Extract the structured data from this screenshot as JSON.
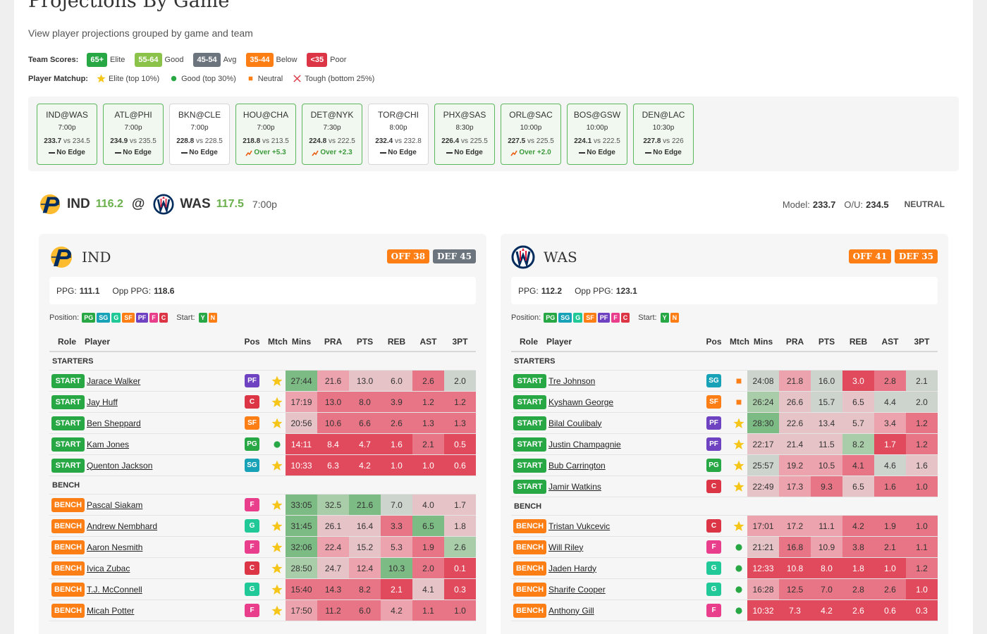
{
  "header": {
    "title": "Projections By Game",
    "subtitle": "View player projections grouped by game and team"
  },
  "legend": {
    "team_scores_label": "Team Scores:",
    "team_scores": [
      {
        "label": "65+",
        "text": "Elite",
        "color": "#28a745"
      },
      {
        "label": "55-64",
        "text": "Good",
        "color": "#8bc34a"
      },
      {
        "label": "45-54",
        "text": "Avg",
        "color": "#6c757d"
      },
      {
        "label": "35-44",
        "text": "Below",
        "color": "#fd7e14"
      },
      {
        "label": "<35",
        "text": "Poor",
        "color": "#dc3545"
      }
    ],
    "player_matchup_label": "Player Matchup:",
    "player_matchup": [
      {
        "icon": "elite",
        "text": "Elite (top 10%)"
      },
      {
        "icon": "good",
        "text": "Good (top 30%)"
      },
      {
        "icon": "neutral",
        "text": "Neutral"
      },
      {
        "icon": "tough",
        "text": "Tough (bottom 25%)"
      }
    ]
  },
  "games": [
    {
      "matchup": "IND@WAS",
      "time": "7:00p",
      "model": "233.7",
      "vs": "vs 234.5",
      "edge": "No Edge",
      "border": "#5cb85c"
    },
    {
      "matchup": "ATL@PHI",
      "time": "7:00p",
      "model": "234.9",
      "vs": "vs 235.5",
      "edge": "No Edge",
      "border": "#5cb85c"
    },
    {
      "matchup": "BKN@CLE",
      "time": "7:00p",
      "model": "228.8",
      "vs": "vs 228.5",
      "edge": "No Edge",
      "border": "#d6d6d6"
    },
    {
      "matchup": "HOU@CHA",
      "time": "7:00p",
      "model": "218.8",
      "vs": "vs 213.5",
      "edge": "Over +5.3",
      "border": "#5cb85c"
    },
    {
      "matchup": "DET@NYK",
      "time": "7:30p",
      "model": "224.8",
      "vs": "vs 222.5",
      "edge": "Over +2.3",
      "border": "#5cb85c"
    },
    {
      "matchup": "TOR@CHI",
      "time": "8:00p",
      "model": "232.4",
      "vs": "vs 232.8",
      "edge": "No Edge",
      "border": "#d6d6d6"
    },
    {
      "matchup": "PHX@SAS",
      "time": "8:30p",
      "model": "226.4",
      "vs": "vs 225.5",
      "edge": "No Edge",
      "border": "#5cb85c"
    },
    {
      "matchup": "ORL@SAC",
      "time": "10:00p",
      "model": "227.5",
      "vs": "vs 225.5",
      "edge": "Over +2.0",
      "border": "#5cb85c"
    },
    {
      "matchup": "BOS@GSW",
      "time": "10:00p",
      "model": "224.1",
      "vs": "vs 222.5",
      "edge": "No Edge",
      "border": "#5cb85c"
    },
    {
      "matchup": "DEN@LAC",
      "time": "10:30p",
      "model": "227.8",
      "vs": "vs 226",
      "edge": "No Edge",
      "border": "#5cb85c"
    }
  ],
  "game_header": {
    "away": "IND",
    "away_score": "116.2",
    "at": "@",
    "home": "WAS",
    "home_score": "117.5",
    "time": "7:00p",
    "model_label": "Model:",
    "model": "233.7",
    "ou_label": "O/U:",
    "ou": "234.5",
    "signal": "NEUTRAL"
  },
  "teams": [
    {
      "name": "IND",
      "off": "OFF 38",
      "off_color": "#fd7e14",
      "def": "DEF 45",
      "def_color": "#6c757d",
      "ppg_label": "PPG:",
      "ppg": "111.1",
      "opp_label": "Opp PPG:",
      "opp": "118.6",
      "position_label": "Position:",
      "positions": [
        {
          "label": "PG",
          "color": "#28a745"
        },
        {
          "label": "SG",
          "color": "#17a2b8"
        },
        {
          "label": "G",
          "color": "#20c997"
        },
        {
          "label": "SF",
          "color": "#fd7e14"
        },
        {
          "label": "PF",
          "color": "#6f42c1"
        },
        {
          "label": "F",
          "color": "#e83e8c"
        },
        {
          "label": "C",
          "color": "#dc3545"
        }
      ],
      "start_label": "Start:",
      "start": [
        {
          "label": "Y",
          "color": "#28a745"
        },
        {
          "label": "N",
          "color": "#fd7e14"
        }
      ],
      "columns": [
        "Role",
        "Player",
        "Pos",
        "Mtch",
        "Mins",
        "PRA",
        "PTS",
        "REB",
        "AST",
        "3PT"
      ],
      "sections": [
        {
          "label": "STARTERS",
          "rows": [
            {
              "role": "START",
              "player": "Jarace Walker",
              "pos": "PF",
              "match": "elite",
              "stats": [
                "27:44",
                "21.6",
                "13.0",
                "6.0",
                "2.6",
                "2.0"
              ],
              "colors": [
                "#7dbb84",
                "#eda3ad",
                "#e6c3c7",
                "#e6c3c7",
                "#e87585",
                "#cdd3cd"
              ]
            },
            {
              "role": "START",
              "player": "Jay Huff",
              "pos": "C",
              "match": "elite",
              "stats": [
                "17:19",
                "13.0",
                "8.0",
                "3.9",
                "1.2",
                "1.2"
              ],
              "colors": [
                "#eda3ad",
                "#e87585",
                "#e87585",
                "#e87585",
                "#e87585",
                "#e87585"
              ]
            },
            {
              "role": "START",
              "player": "Ben Sheppard",
              "pos": "SF",
              "match": "elite",
              "stats": [
                "20:56",
                "10.6",
                "6.6",
                "2.6",
                "1.3",
                "1.3"
              ],
              "colors": [
                "#e6c3c7",
                "#e87585",
                "#e87585",
                "#e87585",
                "#e87585",
                "#e87585"
              ]
            },
            {
              "role": "START",
              "player": "Kam Jones",
              "pos": "PG",
              "match": "good",
              "stats": [
                "14:11",
                "8.4",
                "4.7",
                "1.6",
                "2.1",
                "0.5"
              ],
              "colors": [
                "#e04a5c",
                "#e04a5c",
                "#e04a5c",
                "#e04a5c",
                "#e87585",
                "#e04a5c"
              ]
            },
            {
              "role": "START",
              "player": "Quenton Jackson",
              "pos": "SG",
              "match": "elite",
              "stats": [
                "10:33",
                "6.3",
                "4.2",
                "1.0",
                "1.0",
                "0.6"
              ],
              "colors": [
                "#e04a5c",
                "#e04a5c",
                "#e04a5c",
                "#e04a5c",
                "#e04a5c",
                "#e04a5c"
              ]
            }
          ]
        },
        {
          "label": "BENCH",
          "rows": [
            {
              "role": "BENCH",
              "player": "Pascal Siakam",
              "pos": "F",
              "match": "elite",
              "stats": [
                "33:05",
                "32.5",
                "21.6",
                "7.0",
                "4.0",
                "1.7"
              ],
              "colors": [
                "#7dbb84",
                "#a9cda9",
                "#7dbb84",
                "#cdd3cd",
                "#e6c3c7",
                "#e6c3c7"
              ]
            },
            {
              "role": "BENCH",
              "player": "Andrew Nembhard",
              "pos": "G",
              "match": "elite",
              "stats": [
                "31:45",
                "26.1",
                "16.4",
                "3.3",
                "6.5",
                "1.8"
              ],
              "colors": [
                "#7dbb84",
                "#e6c3c7",
                "#e6c3c7",
                "#e87585",
                "#7dbb84",
                "#e6c3c7"
              ]
            },
            {
              "role": "BENCH",
              "player": "Aaron Nesmith",
              "pos": "F",
              "match": "elite",
              "stats": [
                "32:06",
                "22.4",
                "15.2",
                "5.3",
                "1.9",
                "2.6"
              ],
              "colors": [
                "#7dbb84",
                "#eda3ad",
                "#e6c3c7",
                "#eda3ad",
                "#e87585",
                "#a9cda9"
              ]
            },
            {
              "role": "BENCH",
              "player": "Ivica Zubac",
              "pos": "C",
              "match": "elite",
              "stats": [
                "28:50",
                "24.7",
                "12.4",
                "10.3",
                "2.0",
                "0.1"
              ],
              "colors": [
                "#a9cda9",
                "#e6c3c7",
                "#eda3ad",
                "#7dbb84",
                "#e87585",
                "#e04a5c"
              ]
            },
            {
              "role": "BENCH",
              "player": "T.J. McConnell",
              "pos": "G",
              "match": "elite",
              "stats": [
                "15:40",
                "14.3",
                "8.2",
                "2.1",
                "4.1",
                "0.3"
              ],
              "colors": [
                "#e87585",
                "#e87585",
                "#e87585",
                "#e04a5c",
                "#e6c3c7",
                "#e04a5c"
              ]
            },
            {
              "role": "BENCH",
              "player": "Micah Potter",
              "pos": "F",
              "match": "elite",
              "stats": [
                "17:50",
                "11.2",
                "6.0",
                "4.2",
                "1.1",
                "1.0"
              ],
              "colors": [
                "#eda3ad",
                "#e87585",
                "#e87585",
                "#eda3ad",
                "#e87585",
                "#e87585"
              ]
            }
          ]
        }
      ]
    },
    {
      "name": "WAS",
      "off": "OFF 41",
      "off_color": "#fd7e14",
      "def": "DEF 35",
      "def_color": "#fd7e14",
      "ppg_label": "PPG:",
      "ppg": "112.2",
      "opp_label": "Opp PPG:",
      "opp": "123.1",
      "position_label": "Position:",
      "positions": [
        {
          "label": "PG",
          "color": "#28a745"
        },
        {
          "label": "SG",
          "color": "#17a2b8"
        },
        {
          "label": "G",
          "color": "#20c997"
        },
        {
          "label": "SF",
          "color": "#fd7e14"
        },
        {
          "label": "PF",
          "color": "#6f42c1"
        },
        {
          "label": "F",
          "color": "#e83e8c"
        },
        {
          "label": "C",
          "color": "#dc3545"
        }
      ],
      "start_label": "Start:",
      "start": [
        {
          "label": "Y",
          "color": "#28a745"
        },
        {
          "label": "N",
          "color": "#fd7e14"
        }
      ],
      "columns": [
        "Role",
        "Player",
        "Pos",
        "Mtch",
        "Mins",
        "PRA",
        "PTS",
        "REB",
        "AST",
        "3PT"
      ],
      "sections": [
        {
          "label": "STARTERS",
          "rows": [
            {
              "role": "START",
              "player": "Tre Johnson",
              "pos": "SG",
              "match": "neutral",
              "stats": [
                "24:08",
                "21.8",
                "16.0",
                "3.0",
                "2.8",
                "2.1"
              ],
              "colors": [
                "#cdd3cd",
                "#eda3ad",
                "#cdd3cd",
                "#e04a5c",
                "#e87585",
                "#cdd3cd"
              ]
            },
            {
              "role": "START",
              "player": "Kyshawn George",
              "pos": "SF",
              "match": "neutral",
              "stats": [
                "26:24",
                "26.6",
                "15.7",
                "6.5",
                "4.4",
                "2.0"
              ],
              "colors": [
                "#a9cda9",
                "#e6c3c7",
                "#cdd3cd",
                "#e6c3c7",
                "#cdd3cd",
                "#cdd3cd"
              ]
            },
            {
              "role": "START",
              "player": "Bilal Coulibaly",
              "pos": "PF",
              "match": "elite",
              "stats": [
                "28:30",
                "22.6",
                "13.4",
                "5.7",
                "3.4",
                "1.2"
              ],
              "colors": [
                "#7dbb84",
                "#e6c3c7",
                "#e6c3c7",
                "#e6c3c7",
                "#eda3ad",
                "#e87585"
              ]
            },
            {
              "role": "START",
              "player": "Justin Champagnie",
              "pos": "PF",
              "match": "elite",
              "stats": [
                "22:17",
                "21.4",
                "11.5",
                "8.2",
                "1.7",
                "1.2"
              ],
              "colors": [
                "#e6c3c7",
                "#e6c3c7",
                "#e6c3c7",
                "#a9cda9",
                "#e04a5c",
                "#e87585"
              ]
            },
            {
              "role": "START",
              "player": "Bub Carrington",
              "pos": "PG",
              "match": "elite",
              "stats": [
                "25:57",
                "19.2",
                "10.5",
                "4.1",
                "4.6",
                "1.6"
              ],
              "colors": [
                "#cdd3cd",
                "#eda3ad",
                "#eda3ad",
                "#e87585",
                "#cdd3cd",
                "#e6c3c7"
              ]
            },
            {
              "role": "START",
              "player": "Jamir Watkins",
              "pos": "C",
              "match": "elite",
              "stats": [
                "22:49",
                "17.3",
                "9.3",
                "6.5",
                "1.6",
                "1.0"
              ],
              "colors": [
                "#e6c3c7",
                "#eda3ad",
                "#e87585",
                "#e6c3c7",
                "#e87585",
                "#e87585"
              ]
            }
          ]
        },
        {
          "label": "BENCH",
          "rows": [
            {
              "role": "BENCH",
              "player": "Tristan Vukcevic",
              "pos": "C",
              "match": "elite",
              "stats": [
                "17:01",
                "17.2",
                "11.1",
                "4.2",
                "1.9",
                "1.0"
              ],
              "colors": [
                "#eda3ad",
                "#eda3ad",
                "#eda3ad",
                "#e87585",
                "#e87585",
                "#e87585"
              ]
            },
            {
              "role": "BENCH",
              "player": "Will Riley",
              "pos": "F",
              "match": "good",
              "stats": [
                "21:21",
                "16.8",
                "10.9",
                "3.8",
                "2.1",
                "1.1"
              ],
              "colors": [
                "#e6c3c7",
                "#e87585",
                "#eda3ad",
                "#e87585",
                "#e87585",
                "#e87585"
              ]
            },
            {
              "role": "BENCH",
              "player": "Jaden Hardy",
              "pos": "G",
              "match": "good",
              "stats": [
                "12:33",
                "10.8",
                "8.0",
                "1.8",
                "1.0",
                "1.2"
              ],
              "colors": [
                "#e04a5c",
                "#e04a5c",
                "#e04a5c",
                "#e04a5c",
                "#e04a5c",
                "#e87585"
              ]
            },
            {
              "role": "BENCH",
              "player": "Sharife Cooper",
              "pos": "G",
              "match": "good",
              "stats": [
                "16:28",
                "12.5",
                "7.0",
                "2.8",
                "2.6",
                "1.0"
              ],
              "colors": [
                "#eda3ad",
                "#e87585",
                "#e87585",
                "#e87585",
                "#e87585",
                "#e04a5c"
              ]
            },
            {
              "role": "BENCH",
              "player": "Anthony Gill",
              "pos": "F",
              "match": "good",
              "stats": [
                "10:32",
                "7.3",
                "4.2",
                "2.6",
                "0.6",
                "0.3"
              ],
              "colors": [
                "#e04a5c",
                "#e04a5c",
                "#e04a5c",
                "#e04a5c",
                "#e04a5c",
                "#e04a5c"
              ]
            }
          ]
        }
      ]
    }
  ]
}
